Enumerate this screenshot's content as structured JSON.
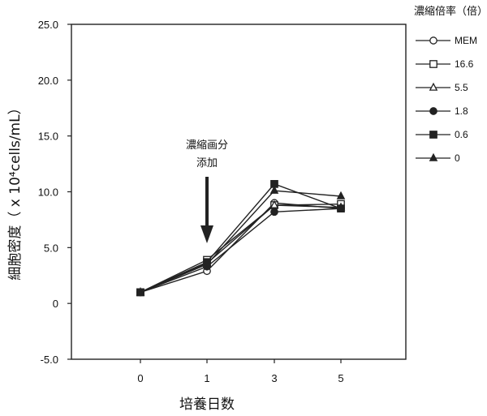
{
  "chart_data": {
    "type": "line",
    "title": "",
    "xlabel": "培養日数",
    "ylabel": "細胞密度（ x 10⁴cells/mL）",
    "ylim": [
      -5.0,
      25.0
    ],
    "y_ticks": [
      "25.0",
      "20.0",
      "15.0",
      "10.0",
      "5.0",
      "0",
      "-5.0"
    ],
    "categories": [
      "0",
      "1",
      "3",
      "5"
    ],
    "legend_title": "濃縮倍率（倍）",
    "legend_position": "right",
    "annotation": {
      "lines": [
        "濃縮画分",
        "添加"
      ],
      "at_category": "1"
    },
    "series": [
      {
        "name": "MEM",
        "marker": "circle-open",
        "values": [
          1.0,
          2.9,
          9.0,
          8.5
        ]
      },
      {
        "name": "16.6",
        "marker": "square-open",
        "values": [
          1.0,
          3.9,
          8.8,
          8.9
        ]
      },
      {
        "name": "5.5",
        "marker": "triangle-open",
        "values": [
          1.0,
          3.6,
          8.8,
          8.6
        ]
      },
      {
        "name": "1.8",
        "marker": "circle-filled",
        "values": [
          1.0,
          3.3,
          8.2,
          8.5
        ]
      },
      {
        "name": "0.6",
        "marker": "square-filled",
        "values": [
          1.0,
          3.7,
          10.7,
          8.5
        ]
      },
      {
        "name": "0",
        "marker": "triangle-filled",
        "values": [
          1.0,
          3.5,
          10.1,
          9.6
        ]
      }
    ],
    "colors": {
      "line": "#222222",
      "marker_fill_open": "#ffffff",
      "marker_fill_filled": "#222222"
    }
  }
}
